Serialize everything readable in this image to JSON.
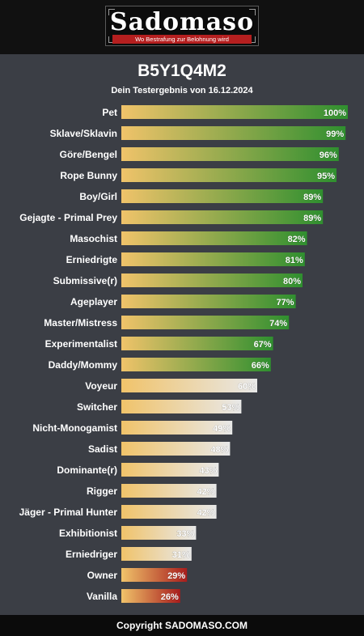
{
  "header": {
    "logo_text": "Sadomaso",
    "tagline": "Wo Bestrafung zur Belohnung wird"
  },
  "title": "B5Y1Q4M2",
  "subtitle": "Dein Testergebnis von 16.12.2024",
  "footer": "Copyright SADOMASO.COM",
  "colors": {
    "background": "#3b3e45",
    "bar_start": "#f0c36a",
    "high_end": "#2f8f2f",
    "mid_end": "#e8e8e8",
    "low_end": "#a81c1c"
  },
  "chart_data": {
    "type": "bar",
    "orientation": "horizontal",
    "xlim": [
      0,
      100
    ],
    "unit": "%",
    "categories": [
      "Pet",
      "Sklave/Sklavin",
      "Göre/Bengel",
      "Rope Bunny",
      "Boy/Girl",
      "Gejagte - Primal Prey",
      "Masochist",
      "Erniedrigte",
      "Submissive(r)",
      "Ageplayer",
      "Master/Mistress",
      "Experimentalist",
      "Daddy/Mommy",
      "Voyeur",
      "Switcher",
      "Nicht-Monogamist",
      "Sadist",
      "Dominante(r)",
      "Rigger",
      "Jäger - Primal Hunter",
      "Exhibitionist",
      "Erniedriger",
      "Owner",
      "Vanilla"
    ],
    "values": [
      100,
      99,
      96,
      95,
      89,
      89,
      82,
      81,
      80,
      77,
      74,
      67,
      66,
      60,
      53,
      49,
      48,
      43,
      42,
      42,
      33,
      31,
      29,
      26
    ],
    "value_labels": [
      "100%",
      "99%",
      "96%",
      "95%",
      "89%",
      "89%",
      "82%",
      "81%",
      "80%",
      "77%",
      "74%",
      "67%",
      "66%",
      "60%",
      "53%",
      "49%",
      "48%",
      "43%",
      "42%",
      "42%",
      "33%",
      "31%",
      "29%",
      "26%"
    ],
    "color_groups": [
      "high",
      "high",
      "high",
      "high",
      "high",
      "high",
      "high",
      "high",
      "high",
      "high",
      "high",
      "high",
      "high",
      "mid",
      "mid",
      "mid",
      "mid",
      "mid",
      "mid",
      "mid",
      "mid",
      "mid",
      "low",
      "low"
    ]
  }
}
